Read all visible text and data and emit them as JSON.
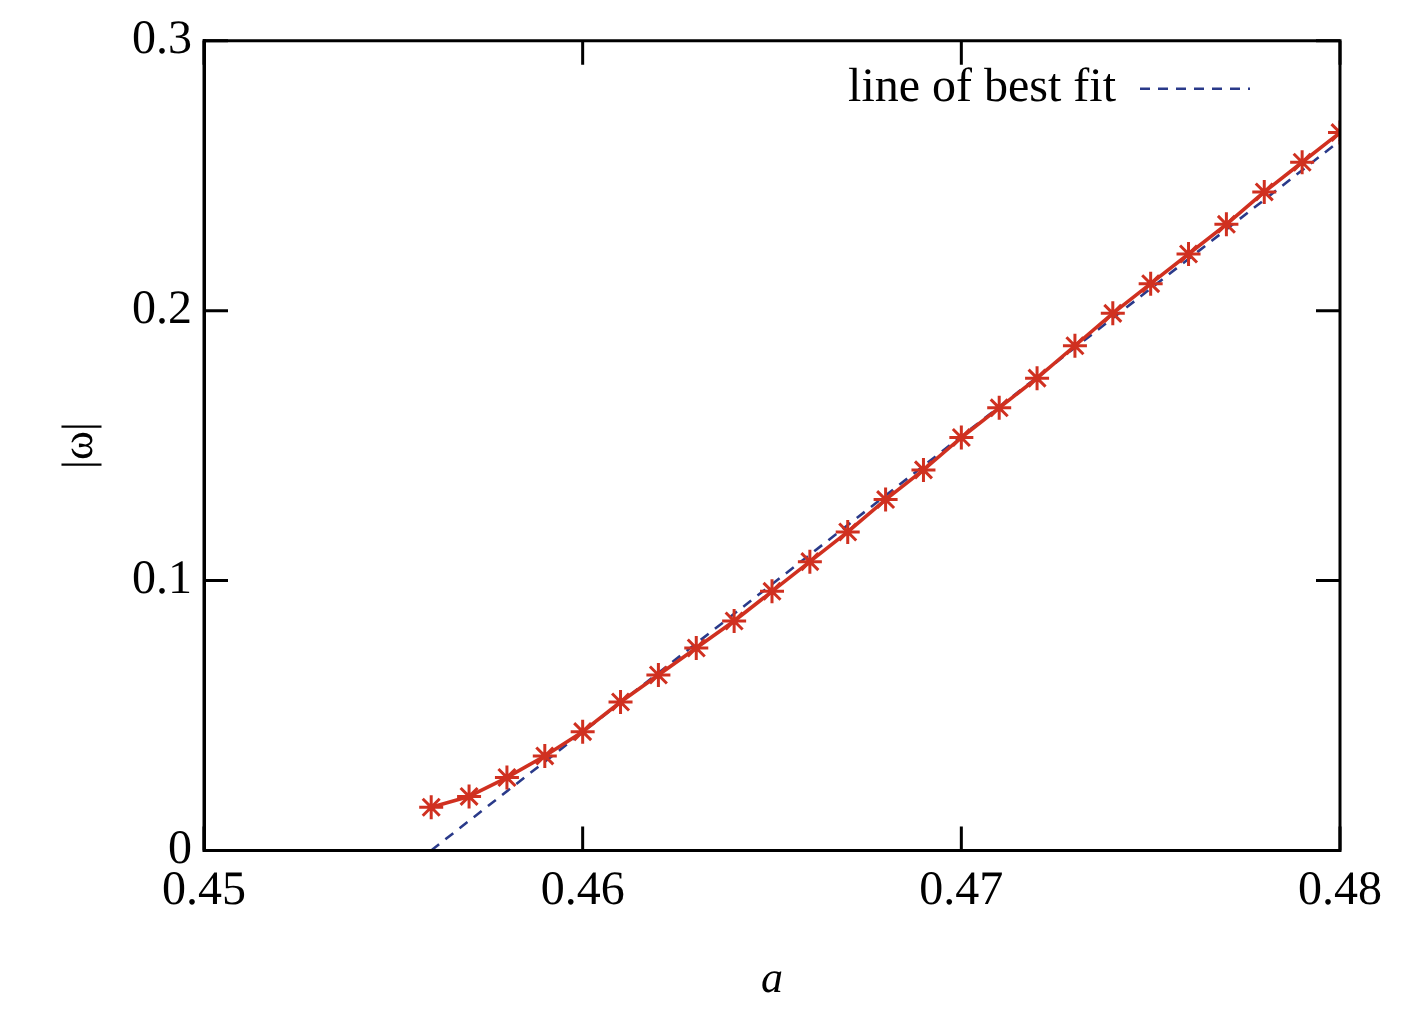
{
  "chart_data": {
    "type": "line",
    "xlabel": "a",
    "ylabel": "|ω|",
    "xlim": [
      0.45,
      0.48
    ],
    "xticks": [
      0.45,
      0.46,
      0.47,
      0.48
    ],
    "ylim": [
      0,
      0.3
    ],
    "yticks": [
      0,
      0.1,
      0.2,
      0.3
    ],
    "grid": false,
    "legend": "top right",
    "series": [
      {
        "color": "#d03020",
        "marker": "cross",
        "line_style": "solid",
        "x": [
          0.456,
          0.457,
          0.458,
          0.459,
          0.46,
          0.461,
          0.462,
          0.463,
          0.464,
          0.465,
          0.466,
          0.467,
          0.468,
          0.469,
          0.47,
          0.471,
          0.472,
          0.473,
          0.474,
          0.475,
          0.476,
          0.477,
          0.478,
          0.479,
          0.48
        ],
        "values": [
          0.016,
          0.02,
          0.027,
          0.035,
          0.044,
          0.055,
          0.065,
          0.075,
          0.085,
          0.096,
          0.107,
          0.118,
          0.13,
          0.141,
          0.153,
          0.164,
          0.175,
          0.187,
          0.199,
          0.21,
          0.221,
          0.232,
          0.244,
          0.255,
          0.266
        ]
      },
      {
        "name": "line of best fit",
        "color": "#2a3a8a",
        "marker": "none",
        "line_style": "dashed",
        "x": [
          0.456,
          0.48
        ],
        "values": [
          0,
          0.263
        ]
      }
    ]
  }
}
